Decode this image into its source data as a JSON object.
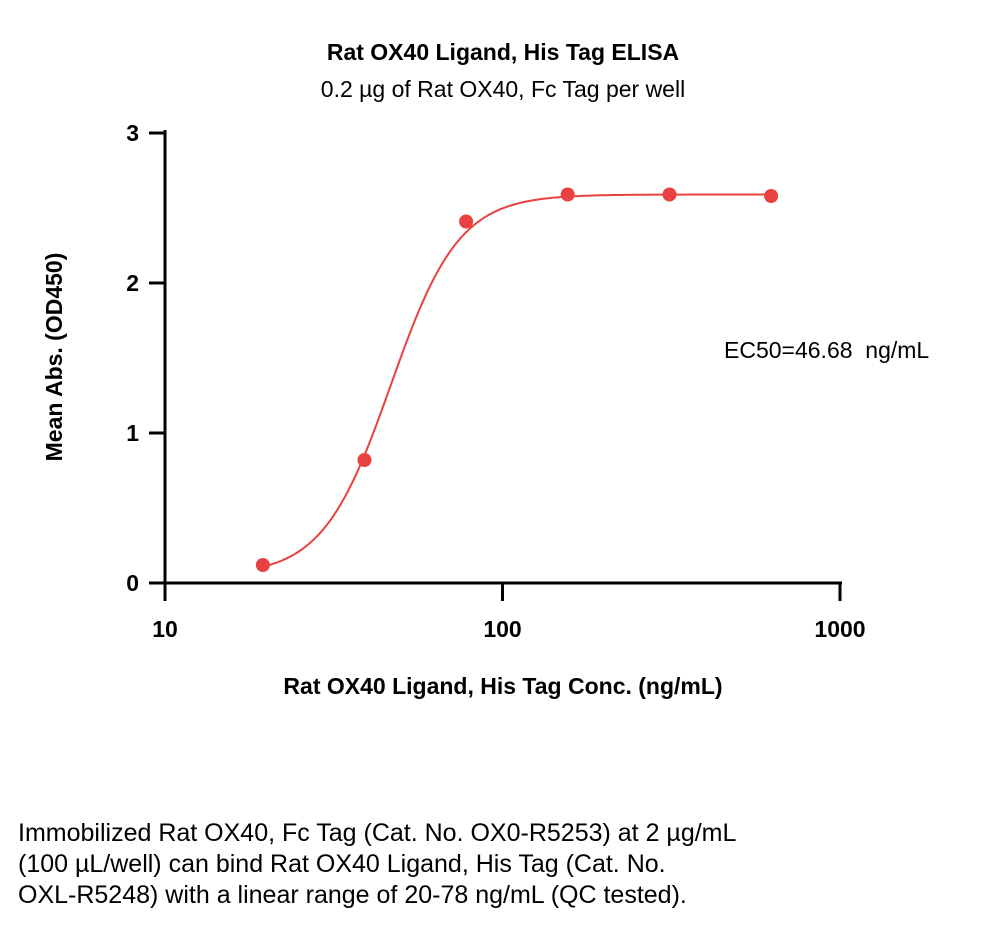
{
  "chart_data": {
    "type": "scatter",
    "title": "Rat OX40 Ligand, His Tag ELISA",
    "subtitle": "0.2 µg of Rat OX40, Fc Tag per well",
    "xlabel": "Rat OX40 Ligand, His Tag Conc. (ng/mL)",
    "ylabel": "Mean Abs. (OD450)",
    "x_scale": "log",
    "xlim": [
      10,
      1000
    ],
    "ylim": [
      0,
      3
    ],
    "x_ticks": [
      "10",
      "100",
      "1000"
    ],
    "y_ticks": [
      "0",
      "1",
      "2",
      "3"
    ],
    "grid": false,
    "annotation": "EC50=46.68  ng/mL",
    "series": [
      {
        "x": [
          19.5,
          39,
          78,
          156,
          312.5,
          625
        ],
        "y": [
          0.12,
          0.82,
          2.41,
          2.59,
          2.59,
          2.58
        ],
        "color": "#e8413f",
        "fit": "sigmoidal"
      }
    ]
  },
  "caption": {
    "line1": "Immobilized Rat OX40, Fc Tag (Cat. No. OX0-R5253) at 2 µg/mL",
    "line2": "(100 µL/well) can bind Rat OX40 Ligand, His Tag (Cat. No.",
    "line3": "OXL-R5248) with a linear range of 20-78 ng/mL (QC tested)."
  }
}
